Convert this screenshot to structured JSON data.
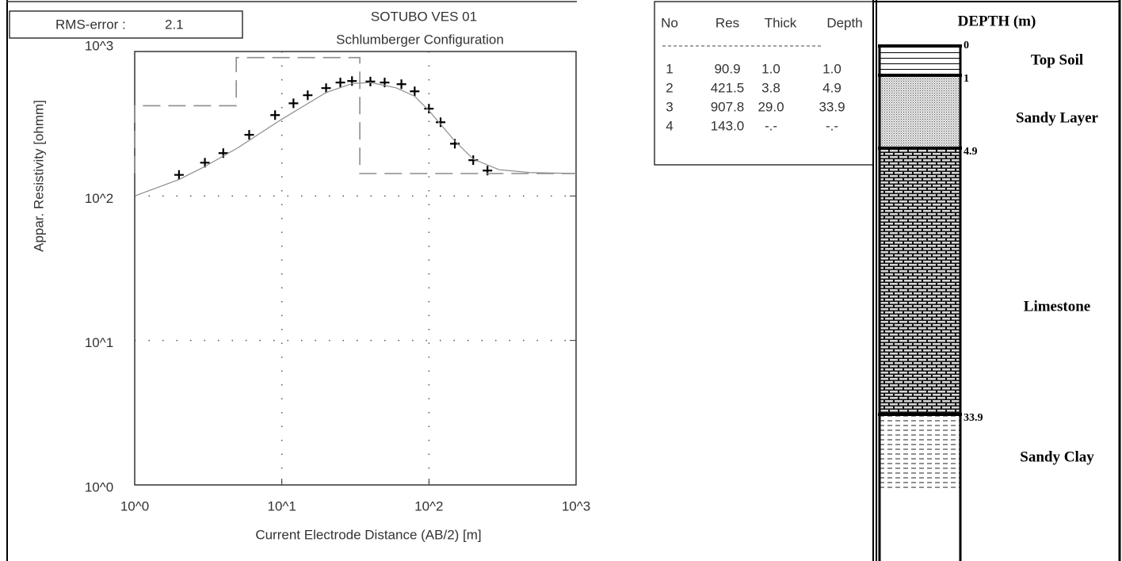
{
  "chart_data": {
    "type": "line",
    "title": "SOTUBO VES 01",
    "subtitle": "Schlumberger Configuration",
    "rms_label": "RMS-error :",
    "rms_value": 2.1,
    "x_label": "Current Electrode Distance (AB/2) [m]",
    "y_label": "Appar. Resistivity [ohmm]",
    "xscale": "log",
    "yscale": "log",
    "grid": true,
    "xlim": [
      1,
      1000
    ],
    "ylim": [
      1,
      1000
    ],
    "xticks": [
      {
        "value": 1,
        "label": "10^0"
      },
      {
        "value": 10,
        "label": "10^1"
      },
      {
        "value": 100,
        "label": "10^2"
      },
      {
        "value": 1000,
        "label": "10^3"
      }
    ],
    "yticks": [
      {
        "value": 1,
        "label": "10^0"
      },
      {
        "value": 10,
        "label": "10^1"
      },
      {
        "value": 100,
        "label": "10^2"
      },
      {
        "value": 1000,
        "label": "10^3"
      }
    ],
    "series": [
      {
        "type": "scatter",
        "marker": "+",
        "color": "#000000",
        "x": [
          2,
          3,
          4,
          6,
          9,
          12,
          15,
          20,
          25,
          30,
          40,
          50,
          65,
          80,
          100,
          120,
          150,
          200,
          250
        ],
        "values": [
          140,
          170,
          198,
          265,
          363,
          438,
          498,
          558,
          610,
          625,
          620,
          610,
          594,
          530,
          402,
          324,
          230,
          177,
          150
        ]
      },
      {
        "type": "line",
        "color": "#8c8c8c",
        "dashed": false,
        "x": [
          1,
          2,
          3,
          5,
          10,
          20,
          30,
          40,
          60,
          80,
          100,
          150,
          200,
          300,
          500,
          1000
        ],
        "values": [
          100,
          130,
          160,
          215,
          340,
          520,
          600,
          610,
          560,
          490,
          390,
          240,
          180,
          152,
          145,
          143
        ]
      },
      {
        "type": "line",
        "color": "#8c8c8c",
        "dashed": true,
        "x": [
          1,
          1,
          4.9,
          4.9,
          33.9,
          33.9,
          1000
        ],
        "values": [
          143,
          421.5,
          421.5,
          907.8,
          907.8,
          143,
          143
        ]
      }
    ]
  },
  "layer_table": {
    "header": [
      "No",
      "Res",
      "Thick",
      "Depth"
    ],
    "rows": [
      [
        "1",
        "90.9",
        "1.0",
        "1.0"
      ],
      [
        "2",
        "421.5",
        "3.8",
        "4.9"
      ],
      [
        "3",
        "907.8",
        "29.0",
        "33.9"
      ],
      [
        "4",
        "143.0",
        "-.-",
        "-.-"
      ]
    ]
  },
  "lithology": {
    "title": "DEPTH (m)",
    "depths": [
      0,
      1,
      4.9,
      33.9
    ],
    "layers": [
      "Top Soil",
      "Sandy Layer",
      "Limestone",
      "Sandy Clay"
    ]
  }
}
